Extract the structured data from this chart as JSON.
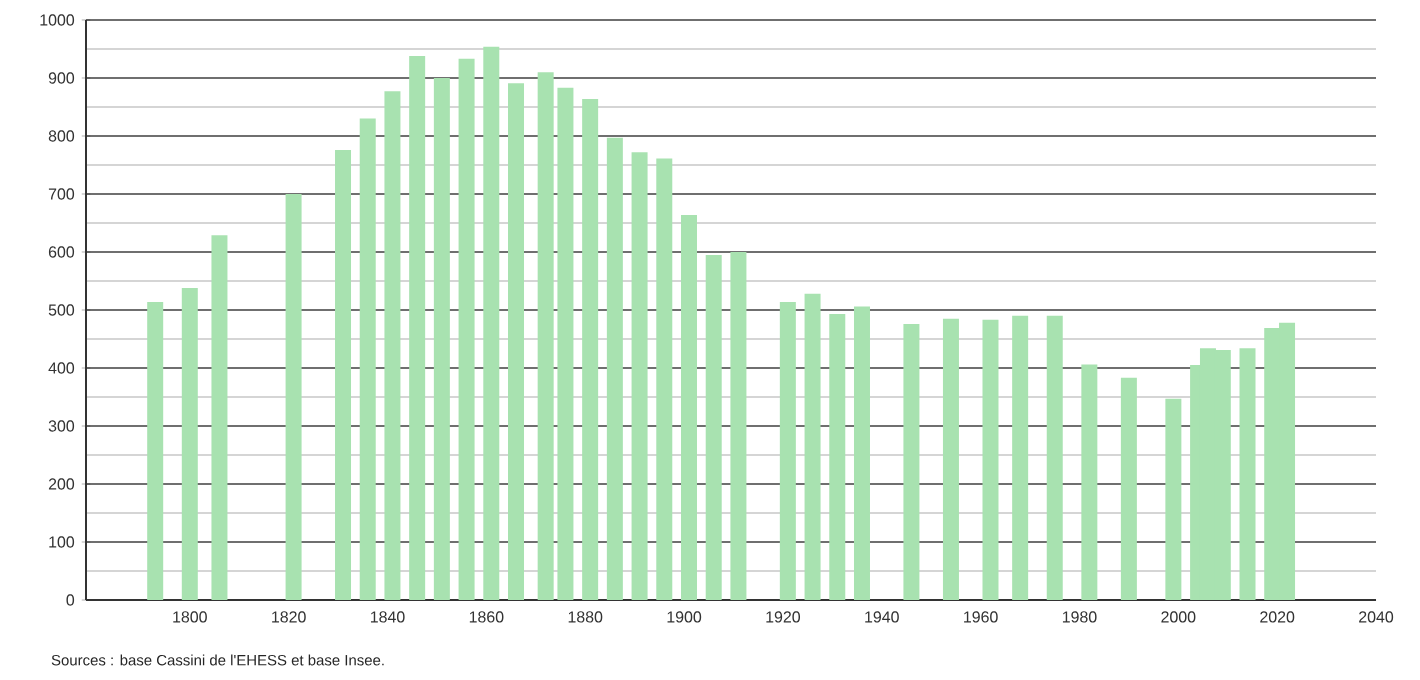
{
  "chart_data": {
    "type": "bar",
    "color": "#a8e2b0",
    "x": [
      1793,
      1800,
      1806,
      1821,
      1831,
      1836,
      1841,
      1846,
      1851,
      1856,
      1861,
      1866,
      1872,
      1876,
      1881,
      1886,
      1891,
      1896,
      1901,
      1906,
      1911,
      1921,
      1926,
      1931,
      1936,
      1946,
      1954,
      1962,
      1968,
      1975,
      1982,
      1990,
      1999,
      2004,
      2006,
      2009,
      2014,
      2019,
      2022
    ],
    "values": [
      514,
      538,
      629,
      700,
      776,
      830,
      877,
      938,
      900,
      933,
      954,
      891,
      910,
      883,
      864,
      797,
      772,
      761,
      664,
      595,
      600,
      514,
      528,
      493,
      506,
      476,
      485,
      483,
      490,
      490,
      406,
      383,
      347,
      405,
      434,
      431,
      434,
      469,
      478
    ],
    "xlim": [
      1779,
      2040
    ],
    "xticks": [
      1800,
      1820,
      1840,
      1860,
      1880,
      1900,
      1920,
      1940,
      1960,
      1980,
      2000,
      2020,
      2040
    ],
    "ylim": [
      0,
      1000
    ],
    "yticks": [
      0,
      100,
      200,
      300,
      400,
      500,
      600,
      700,
      800,
      900,
      1000
    ],
    "grid": "y",
    "annotations": [
      "Sources : base Cassini de l'EHESS et base Insee."
    ]
  }
}
